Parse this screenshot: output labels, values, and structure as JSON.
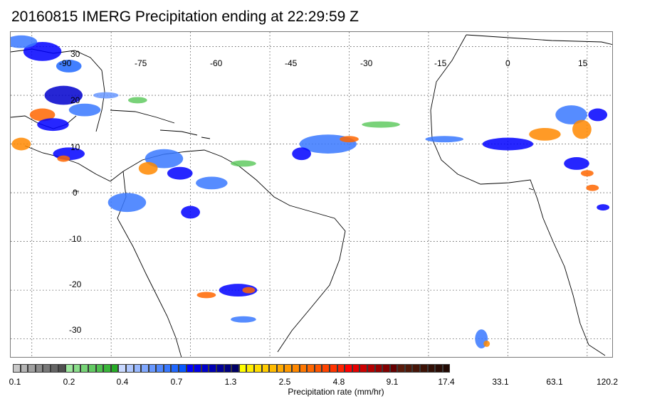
{
  "title": "20160815 IMERG Precipitation ending at 22:29:59 Z",
  "map": {
    "lon_labels": [
      "-90",
      "-75",
      "-60",
      "-45",
      "-30",
      "-15",
      "0",
      "15"
    ],
    "lat_labels": [
      "30",
      "20",
      "10",
      "0",
      "-10",
      "-20",
      "-30"
    ],
    "extent": {
      "lon_min": -94,
      "lon_max": 20,
      "lat_min": -34,
      "lat_max": 33
    }
  },
  "colorbar": {
    "colors": [
      "#c8c8c8",
      "#b4b4b4",
      "#a0a0a0",
      "#8c8c8c",
      "#787878",
      "#646464",
      "#505050",
      "#9ee89e",
      "#8ade8a",
      "#76d476",
      "#62ca62",
      "#4ec04e",
      "#3ab63a",
      "#26ac26",
      "#c8d8ff",
      "#b0c8ff",
      "#98b8ff",
      "#80a8ff",
      "#6898ff",
      "#5088ff",
      "#3878ff",
      "#2068ff",
      "#0858ff",
      "#0000ff",
      "#0000e6",
      "#0000cc",
      "#0000b3",
      "#000099",
      "#000080",
      "#000066",
      "#ffff00",
      "#ffee00",
      "#ffdd00",
      "#ffcc00",
      "#ffbb00",
      "#ffaa00",
      "#ff9900",
      "#ff8800",
      "#ff7700",
      "#ff6600",
      "#ff5500",
      "#ff4400",
      "#ff3300",
      "#ff2200",
      "#ff0000",
      "#e60000",
      "#cc0000",
      "#b30000",
      "#990000",
      "#800000",
      "#660000",
      "#5a1a0a",
      "#501808",
      "#461508",
      "#3c1206",
      "#320f05",
      "#2a0c04",
      "#220a03"
    ],
    "tick_labels": [
      "0.1",
      "0.2",
      "0.4",
      "0.7",
      "1.3",
      "2.5",
      "4.8",
      "9.1",
      "17.4",
      "33.1",
      "63.1",
      "120.2"
    ],
    "caption": "Precipitation rate (mm/hr)"
  },
  "precip_cells": [
    {
      "lon": -88,
      "lat": 29,
      "rx": 6,
      "ry": 3,
      "c": "#0000ff"
    },
    {
      "lon": -83,
      "lat": 26,
      "rx": 4,
      "ry": 2,
      "c": "#2068ff"
    },
    {
      "lon": -92,
      "lat": 31,
      "rx": 5,
      "ry": 2,
      "c": "#3878ff"
    },
    {
      "lon": -84,
      "lat": 20,
      "rx": 6,
      "ry": 3,
      "c": "#0000cc"
    },
    {
      "lon": -88,
      "lat": 16,
      "rx": 4,
      "ry": 2,
      "c": "#ff6600"
    },
    {
      "lon": -86,
      "lat": 14,
      "rx": 5,
      "ry": 2,
      "c": "#0000ff"
    },
    {
      "lon": -80,
      "lat": 17,
      "rx": 5,
      "ry": 2,
      "c": "#3878ff"
    },
    {
      "lon": -92,
      "lat": 10,
      "rx": 3,
      "ry": 2,
      "c": "#ff8800"
    },
    {
      "lon": -83,
      "lat": 8,
      "rx": 5,
      "ry": 2,
      "c": "#0000ff"
    },
    {
      "lon": -84,
      "lat": 7,
      "rx": 2,
      "ry": 1,
      "c": "#ff6600"
    },
    {
      "lon": -76,
      "lat": 20,
      "rx": 4,
      "ry": 1,
      "c": "#6898ff"
    },
    {
      "lon": -70,
      "lat": 19,
      "rx": 3,
      "ry": 1,
      "c": "#62ca62"
    },
    {
      "lon": -65,
      "lat": 7,
      "rx": 6,
      "ry": 3,
      "c": "#3878ff"
    },
    {
      "lon": -62,
      "lat": 4,
      "rx": 4,
      "ry": 2,
      "c": "#0000ff"
    },
    {
      "lon": -68,
      "lat": 5,
      "rx": 3,
      "ry": 2,
      "c": "#ff8800"
    },
    {
      "lon": -56,
      "lat": 2,
      "rx": 5,
      "ry": 2,
      "c": "#3878ff"
    },
    {
      "lon": -50,
      "lat": 6,
      "rx": 4,
      "ry": 1,
      "c": "#62ca62"
    },
    {
      "lon": -72,
      "lat": -2,
      "rx": 6,
      "ry": 3,
      "c": "#3878ff"
    },
    {
      "lon": -60,
      "lat": -4,
      "rx": 3,
      "ry": 2,
      "c": "#0000ff"
    },
    {
      "lon": -34,
      "lat": 10,
      "rx": 9,
      "ry": 3,
      "c": "#3878ff"
    },
    {
      "lon": -30,
      "lat": 11,
      "rx": 3,
      "ry": 1,
      "c": "#ff6600"
    },
    {
      "lon": -39,
      "lat": 8,
      "rx": 3,
      "ry": 2,
      "c": "#0000ff"
    },
    {
      "lon": -24,
      "lat": 14,
      "rx": 6,
      "ry": 1,
      "c": "#62ca62"
    },
    {
      "lon": -12,
      "lat": 11,
      "rx": 6,
      "ry": 1,
      "c": "#3878ff"
    },
    {
      "lon": 0,
      "lat": 10,
      "rx": 8,
      "ry": 2,
      "c": "#0000ff"
    },
    {
      "lon": 7,
      "lat": 12,
      "rx": 5,
      "ry": 2,
      "c": "#ff8800"
    },
    {
      "lon": 12,
      "lat": 16,
      "rx": 5,
      "ry": 3,
      "c": "#3878ff"
    },
    {
      "lon": 14,
      "lat": 13,
      "rx": 3,
      "ry": 3,
      "c": "#ff8800"
    },
    {
      "lon": 17,
      "lat": 16,
      "rx": 3,
      "ry": 2,
      "c": "#0000ff"
    },
    {
      "lon": 13,
      "lat": 6,
      "rx": 4,
      "ry": 2,
      "c": "#0000ff"
    },
    {
      "lon": 15,
      "lat": 4,
      "rx": 2,
      "ry": 1,
      "c": "#ff6600"
    },
    {
      "lon": 16,
      "lat": 1,
      "rx": 2,
      "ry": 1,
      "c": "#ff6600"
    },
    {
      "lon": 18,
      "lat": -3,
      "rx": 2,
      "ry": 1,
      "c": "#0000ff"
    },
    {
      "lon": -51,
      "lat": -20,
      "rx": 6,
      "ry": 2,
      "c": "#0000ff"
    },
    {
      "lon": -49,
      "lat": -20,
      "rx": 2,
      "ry": 1,
      "c": "#ff6600"
    },
    {
      "lon": -57,
      "lat": -21,
      "rx": 3,
      "ry": 1,
      "c": "#ff6600"
    },
    {
      "lon": -50,
      "lat": -26,
      "rx": 4,
      "ry": 1,
      "c": "#3878ff"
    },
    {
      "lon": -5,
      "lat": -30,
      "rx": 2,
      "ry": 3,
      "c": "#3878ff"
    },
    {
      "lon": -4,
      "lat": -31,
      "rx": 1,
      "ry": 1,
      "c": "#ff8800"
    }
  ]
}
